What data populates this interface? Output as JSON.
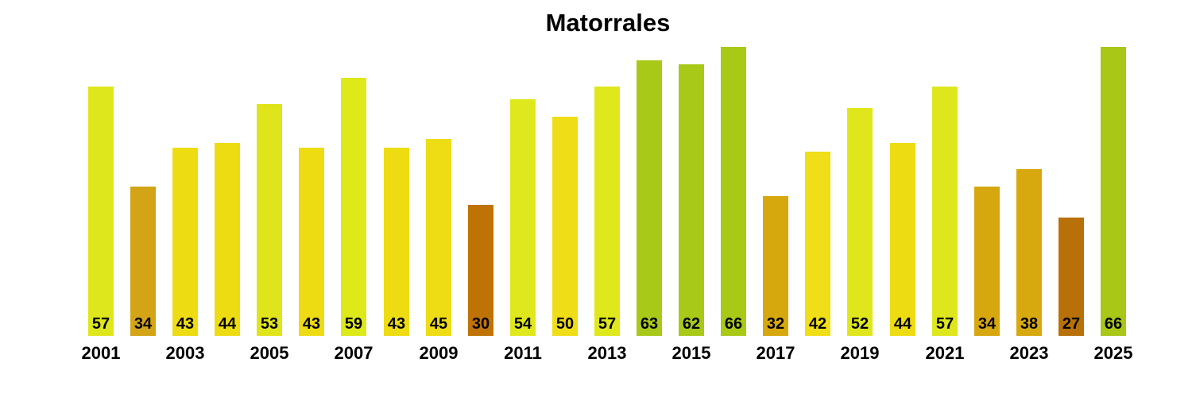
{
  "title": "Matorrales",
  "colors": {
    "background": "#ffffff",
    "text": "#000000",
    "low": "#b87108",
    "mid": "#d6a80e",
    "yellow": "#eedd13",
    "yellow_green": "#dfe81c",
    "green": "#a9c918"
  },
  "chart_data": {
    "type": "bar",
    "title": "Matorrales",
    "xlabel": "",
    "ylabel": "",
    "ylim": [
      0,
      66
    ],
    "grid": false,
    "legend": false,
    "value_labels": "inside-bottom",
    "x": [
      2001,
      2002,
      2003,
      2004,
      2005,
      2006,
      2007,
      2008,
      2009,
      2010,
      2011,
      2012,
      2013,
      2014,
      2015,
      2016,
      2017,
      2018,
      2019,
      2020,
      2021,
      2022,
      2023,
      2024,
      2025
    ],
    "values": [
      57,
      34,
      43,
      44,
      53,
      43,
      59,
      43,
      45,
      30,
      54,
      50,
      57,
      63,
      62,
      66,
      32,
      42,
      52,
      44,
      57,
      34,
      38,
      27,
      66
    ],
    "bar_colors": [
      "#dee71c",
      "#d3a416",
      "#eedc13",
      "#eedc13",
      "#e0e51b",
      "#eedc13",
      "#dee91a",
      "#eedc13",
      "#eedd14",
      "#bf7306",
      "#dfe81c",
      "#efdd17",
      "#dfe81c",
      "#a9c918",
      "#a9c918",
      "#a9c917",
      "#d6a80e",
      "#f0de18",
      "#dfe71c",
      "#eedc13",
      "#dee71d",
      "#d6a70f",
      "#d7a90e",
      "#b87108",
      "#a8c716"
    ],
    "x_tick_labels": [
      "2001",
      "2003",
      "2005",
      "2007",
      "2009",
      "2011",
      "2013",
      "2015",
      "2017",
      "2019",
      "2021",
      "2023",
      "2025"
    ]
  }
}
